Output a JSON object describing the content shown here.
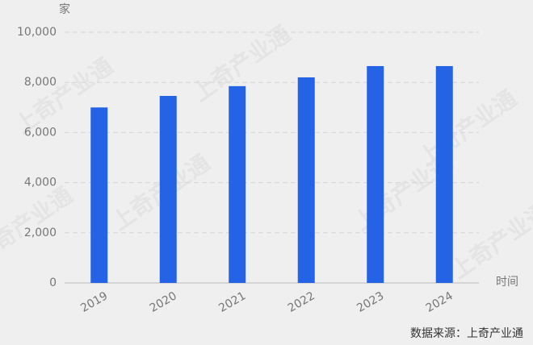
{
  "chart_data": {
    "type": "bar",
    "y_label": "家",
    "x_label": "时间",
    "source": "数据来源：上奇产业通",
    "watermark": "上奇产业通",
    "categories": [
      "2019",
      "2020",
      "2021",
      "2022",
      "2023",
      "2024"
    ],
    "values": [
      7000,
      7460,
      7850,
      8200,
      8650,
      8650
    ],
    "color": "#2563e6",
    "ylim": [
      0,
      10000
    ],
    "yticks": [
      0,
      {
        "value": 2000,
        "label": "2,000"
      },
      {
        "value": 4000,
        "label": "4,000"
      },
      {
        "value": 6000,
        "label": "6,000"
      },
      {
        "value": 8000,
        "label": "8,000"
      },
      {
        "value": 10000,
        "label": "10,000"
      }
    ],
    "grid": true
  }
}
